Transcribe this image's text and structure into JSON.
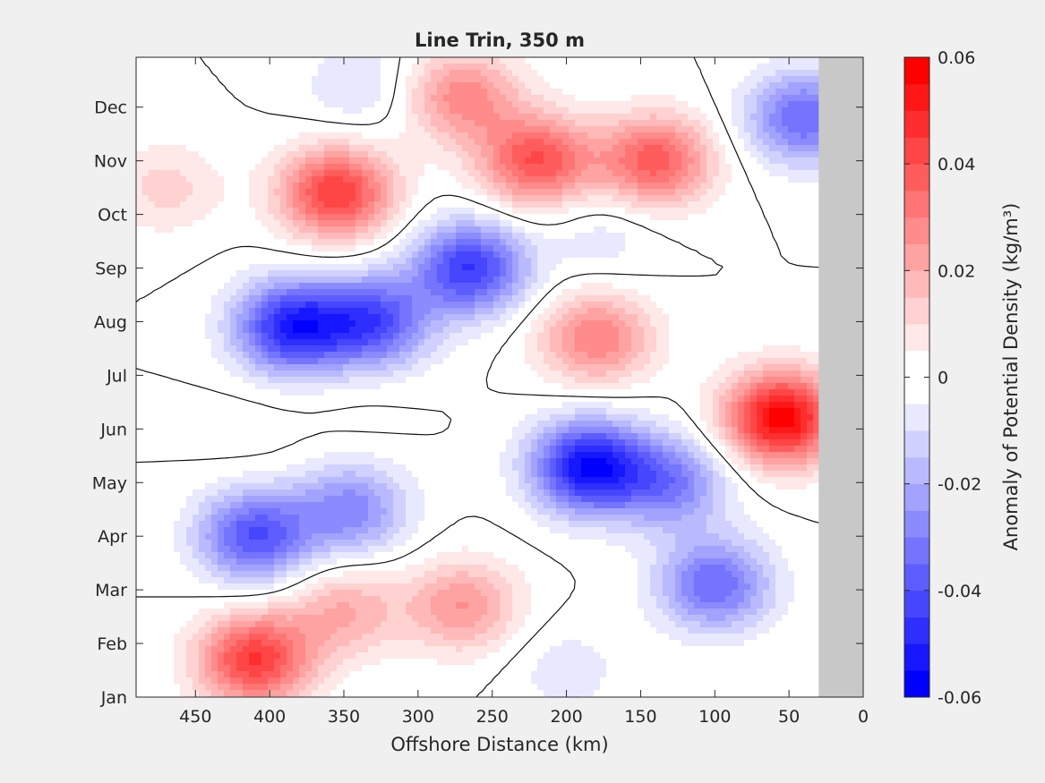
{
  "chart_data": {
    "type": "heatmap",
    "subtype": "filled-contour",
    "title": "Line Trin, 350 m",
    "xlabel": "Offshore Distance (km)",
    "xlim": [
      490,
      0
    ],
    "x_reversed": true,
    "xticks": [
      450,
      400,
      350,
      300,
      250,
      200,
      150,
      100,
      50,
      0
    ],
    "ylabel": "",
    "yticks": [
      "Jan",
      "Feb",
      "Mar",
      "Apr",
      "May",
      "Jun",
      "Jul",
      "Aug",
      "Sep",
      "Oct",
      "Nov",
      "Dec"
    ],
    "ylim_months": [
      0,
      11.93
    ],
    "no_data_region": {
      "x_from_km": 30,
      "x_to_km": 0,
      "color": "#c8c8c8"
    },
    "colorbar": {
      "label": "Anomaly of Potential Density (kg/m³)",
      "min": -0.06,
      "max": 0.06,
      "step": 0.005,
      "ticks": [
        "0.06",
        "0.04",
        "0.02",
        "0",
        "-0.02",
        "-0.04",
        "-0.06"
      ],
      "colors": {
        "negative_extreme": "#0000ff",
        "neutral": "#ffffff",
        "positive_extreme": "#ff0000"
      }
    },
    "zero_contour": true,
    "features": [
      {
        "x_km": 410,
        "month": 0.7,
        "value": 0.045
      },
      {
        "x_km": 270,
        "month": 1.7,
        "value": 0.025
      },
      {
        "x_km": 350,
        "month": 1.6,
        "value": 0.02
      },
      {
        "x_km": 200,
        "month": 0.5,
        "value": -0.008
      },
      {
        "x_km": 100,
        "month": 2.1,
        "value": -0.035
      },
      {
        "x_km": 410,
        "month": 3.0,
        "value": -0.04
      },
      {
        "x_km": 345,
        "month": 3.5,
        "value": -0.028
      },
      {
        "x_km": 185,
        "month": 4.3,
        "value": -0.055
      },
      {
        "x_km": 130,
        "month": 4.0,
        "value": -0.03
      },
      {
        "x_km": 55,
        "month": 5.2,
        "value": 0.058
      },
      {
        "x_km": 180,
        "month": 6.7,
        "value": 0.03
      },
      {
        "x_km": 385,
        "month": 6.9,
        "value": -0.05
      },
      {
        "x_km": 265,
        "month": 8.0,
        "value": -0.045
      },
      {
        "x_km": 330,
        "month": 7.0,
        "value": -0.04
      },
      {
        "x_km": 355,
        "month": 9.4,
        "value": 0.045
      },
      {
        "x_km": 220,
        "month": 10.0,
        "value": 0.04
      },
      {
        "x_km": 140,
        "month": 10.0,
        "value": 0.038
      },
      {
        "x_km": 175,
        "month": 8.6,
        "value": -0.008
      },
      {
        "x_km": 340,
        "month": 11.4,
        "value": -0.01
      },
      {
        "x_km": 40,
        "month": 10.8,
        "value": -0.035
      },
      {
        "x_km": 270,
        "month": 11.2,
        "value": 0.028
      },
      {
        "x_km": 470,
        "month": 9.5,
        "value": 0.012
      },
      {
        "x_km": 415,
        "month": 5.0,
        "value": 0.003
      },
      {
        "x_km": 340,
        "month": 5.3,
        "value": 0.002
      }
    ]
  }
}
